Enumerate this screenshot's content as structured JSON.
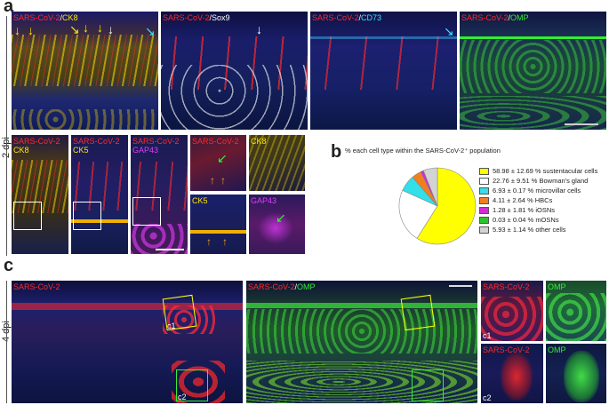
{
  "panel_letters": {
    "a": "a",
    "b": "b",
    "c": "c"
  },
  "row_labels": {
    "dpi2": "2 dpi",
    "dpi4": "4 dpi"
  },
  "top_row": [
    {
      "parts": [
        "SARS-CoV-2",
        "/",
        "CK8"
      ],
      "colors": [
        "#ff2a2a",
        "#ffffff",
        "#ffe600"
      ]
    },
    {
      "parts": [
        "SARS-CoV-2",
        "/",
        "Sox9"
      ],
      "colors": [
        "#ff2a2a",
        "#ffffff",
        "#ffffff"
      ]
    },
    {
      "parts": [
        "SARS-CoV-2",
        "/",
        "CD73"
      ],
      "colors": [
        "#ff2a2a",
        "#ffffff",
        "#33e6ff"
      ]
    },
    {
      "parts": [
        "SARS-CoV-2",
        "/",
        "OMP"
      ],
      "colors": [
        "#ff2a2a",
        "#ffffff",
        "#33ee33"
      ]
    }
  ],
  "mid_row": {
    "p1": [
      "SARS-CoV-2",
      "CK8"
    ],
    "p2": [
      "SARS-CoV-2",
      "CK5"
    ],
    "p3": [
      "SARS-CoV-2",
      "GAP43"
    ],
    "z1": "SARS-CoV-2",
    "z2": "CK8",
    "z3": "CK5",
    "z4": "GAP43"
  },
  "bottom_row": {
    "left": "SARS-CoV-2",
    "mid": [
      "SARS-CoV-2",
      "/",
      "OMP"
    ],
    "c1_red": "SARS-CoV-2",
    "c1_green": "OMP",
    "c2_red": "SARS-CoV-2",
    "c2_green": "OMP",
    "c1_tag": "c1",
    "c2_tag": "c2"
  },
  "chart_data": {
    "type": "pie",
    "title": "% each cell type within the SARS-CoV-2⁺ population",
    "slices": [
      {
        "label": "58.98 ± 12.69 % sustentacular cells",
        "value": 58.98,
        "color": "#ffff00"
      },
      {
        "label": "22.76 ± 9.51 % Bowman's gland",
        "value": 22.76,
        "color": "#ffffff"
      },
      {
        "label": "6.93 ± 0.17 % microvillar cells",
        "value": 6.93,
        "color": "#33dfe8"
      },
      {
        "label": "4.11 ± 2.64 % HBCs",
        "value": 4.11,
        "color": "#f07f1e"
      },
      {
        "label": "1.28 ± 1.81 % iOSNs",
        "value": 1.28,
        "color": "#d42bd4"
      },
      {
        "label": "0.03 ± 0.04 % mOSNs",
        "value": 0.03,
        "color": "#2bc42b"
      },
      {
        "label": "5.93 ± 1.14 % other cells",
        "value": 5.93,
        "color": "#d3d3d3"
      }
    ]
  }
}
